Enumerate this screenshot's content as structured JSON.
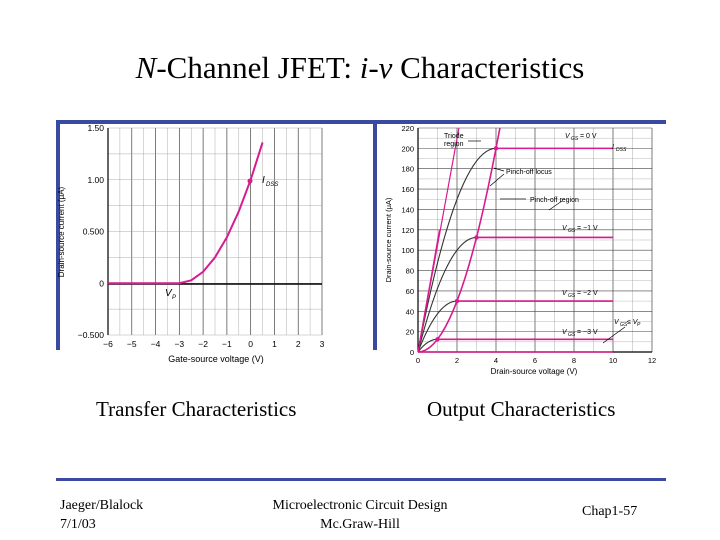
{
  "slide": {
    "title_prefix": "N",
    "title_middle": "-Channel JFET: ",
    "title_iv": "i-v",
    "title_suffix": " Characteristics",
    "caption_left": "Transfer Characteristics",
    "caption_right": "Output Characteristics",
    "footer_author": "Jaeger/Blalock",
    "footer_date": "7/1/03",
    "footer_book": "Microelectronic Circuit Design",
    "footer_publisher": "Mc.Graw-Hill",
    "footer_page": "Chap1-57",
    "accent_color": "#3a4aa0",
    "curve_color": "#d81b8f"
  },
  "chart_data": [
    {
      "type": "line",
      "ylabel": "Drain-source current (μA)",
      "xlabel": "Gate-source voltage (V)",
      "xlim": [
        -6,
        3
      ],
      "ylim": [
        -0.5,
        1.5
      ],
      "x_ticks": [
        "−6",
        "−5",
        "−4",
        "−3",
        "−2",
        "−1",
        "0",
        "1",
        "2",
        "3"
      ],
      "y_ticks": [
        "−0.500",
        "0",
        "0.500",
        "1.00",
        "1.50"
      ],
      "annotations": [
        "I",
        "DSS",
        "V",
        "P"
      ],
      "curve": {
        "x": [
          -6,
          -5,
          -4,
          -3,
          -2.5,
          -2,
          -1.5,
          -1,
          -0.5,
          0,
          0.5
        ],
        "y": [
          0,
          0,
          0,
          0,
          0.028,
          0.111,
          0.25,
          0.444,
          0.694,
          1.0,
          1.361
        ]
      }
    },
    {
      "type": "line",
      "ylabel": "Drain-source current (μA)",
      "xlabel": "Drain-source voltage (V)",
      "xlim": [
        0,
        12
      ],
      "ylim": [
        0,
        220
      ],
      "x_ticks": [
        "0",
        "2",
        "4",
        "6",
        "8",
        "10",
        "12"
      ],
      "y_ticks": [
        "0",
        "20",
        "40",
        "60",
        "80",
        "100",
        "120",
        "140",
        "160",
        "180",
        "200",
        "220"
      ],
      "annotations": [
        "Triode region",
        "Pinch-off locus",
        "Pinch-off region",
        "I",
        "DSS",
        "V",
        "GS",
        "= 0 V",
        "= −1 V",
        "= −2 V",
        "= −3 V",
        "≤ V",
        "P"
      ],
      "series": [
        {
          "label_value": "0 V",
          "vp": 4,
          "ids": 200
        },
        {
          "label_value": "−1 V",
          "vp": 3,
          "ids": 112.5
        },
        {
          "label_value": "−2 V",
          "vp": 2,
          "ids": 50
        },
        {
          "label_value": "−3 V",
          "vp": 1,
          "ids": 12.5
        }
      ]
    }
  ]
}
